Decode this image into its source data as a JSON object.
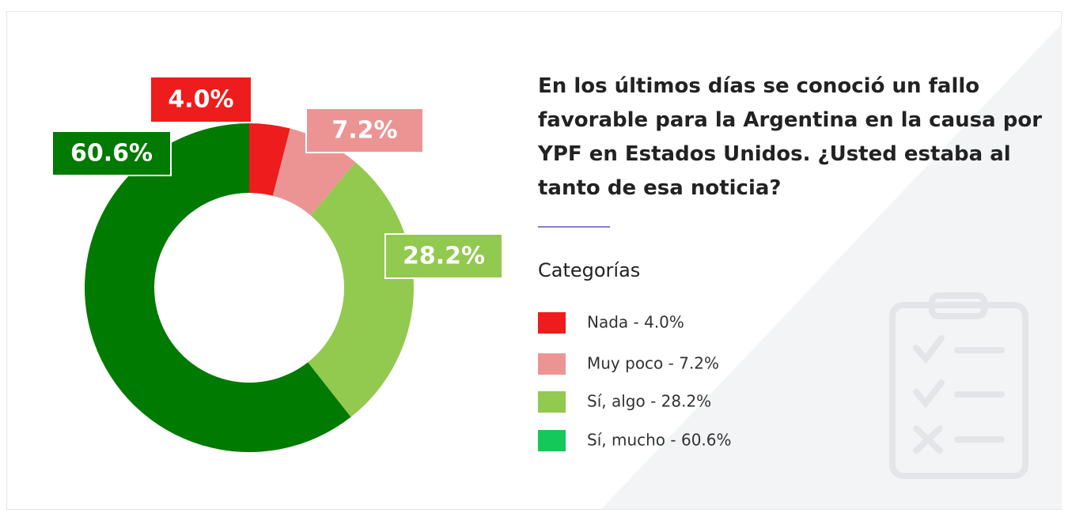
{
  "chart_data": {
    "type": "donut",
    "title": "En los últimos días se conoció un fallo favorable para la Argentina en la causa por YPF en Estados Unidos. ¿Usted estaba al tanto de esa noticia?",
    "legend_title": "Categorías",
    "categories": [
      "Nada",
      "Muy poco",
      "Sí, algo",
      "Sí, mucho"
    ],
    "values": [
      4.0,
      7.2,
      28.2,
      60.6
    ],
    "value_labels": [
      "4.0%",
      "7.2%",
      "28.2%",
      "60.6%"
    ],
    "legend_labels": [
      "Nada - 4.0%",
      "Muy poco - 7.2%",
      "Sí, algo - 28.2%",
      "Sí, mucho - 60.6%"
    ],
    "colors": [
      "#ee1c1c",
      "#ec9494",
      "#92c94f",
      "#007a00"
    ],
    "legend_colors": [
      "#ee1c1c",
      "#ec9494",
      "#92c94f",
      "#14c85a"
    ]
  }
}
